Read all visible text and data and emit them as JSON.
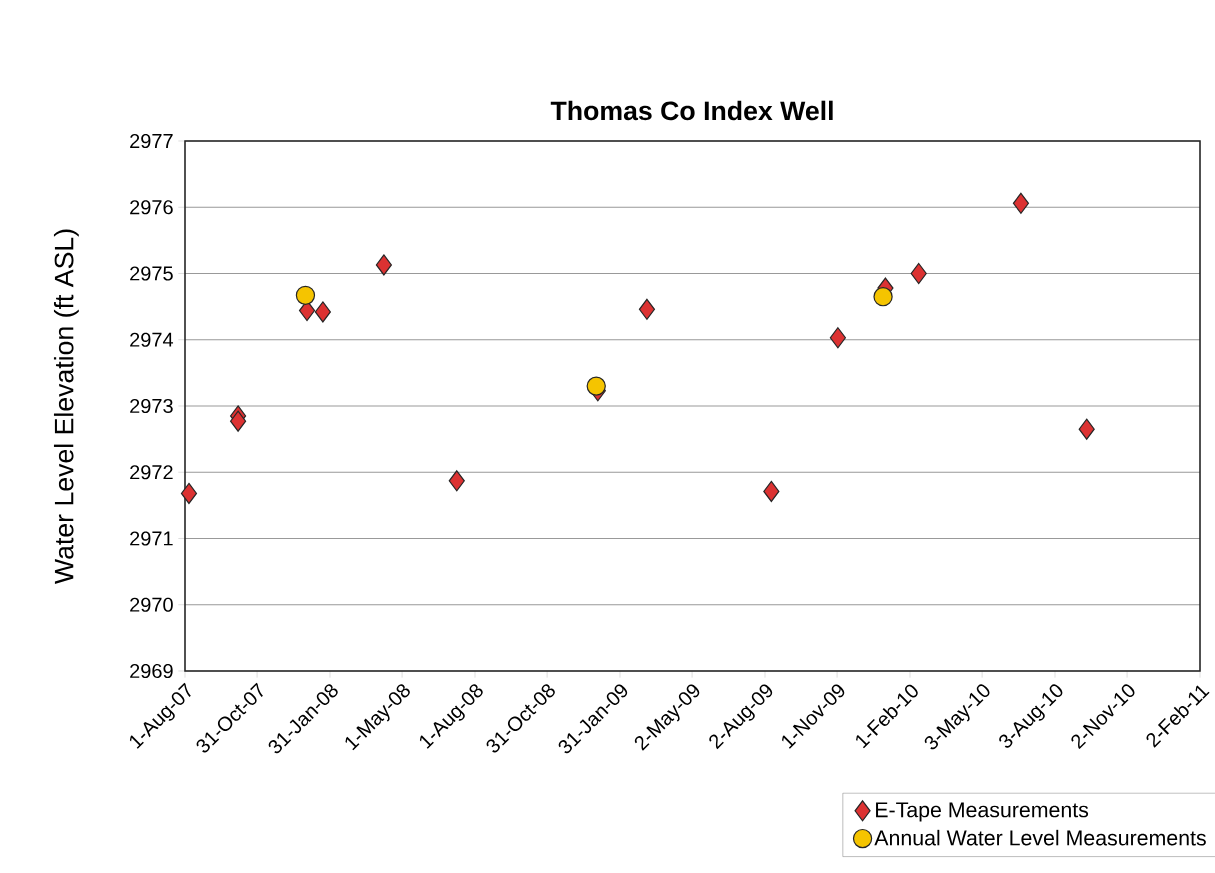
{
  "chart_data": {
    "type": "scatter",
    "title": "Thomas Co Index Well",
    "ylabel": "Water Level Elevation (ft ASL)",
    "xlim": [
      "2007-08-01",
      "2011-02-02"
    ],
    "xticks": [
      {
        "value": "2007-08-01",
        "label": "1-Aug-07"
      },
      {
        "value": "2007-10-31",
        "label": "31-Oct-07"
      },
      {
        "value": "2008-01-31",
        "label": "31-Jan-08"
      },
      {
        "value": "2008-05-01",
        "label": "1-May-08"
      },
      {
        "value": "2008-08-01",
        "label": "1-Aug-08"
      },
      {
        "value": "2008-10-31",
        "label": "31-Oct-08"
      },
      {
        "value": "2009-01-31",
        "label": "31-Jan-09"
      },
      {
        "value": "2009-05-02",
        "label": "2-May-09"
      },
      {
        "value": "2009-08-02",
        "label": "2-Aug-09"
      },
      {
        "value": "2009-11-01",
        "label": "1-Nov-09"
      },
      {
        "value": "2010-02-01",
        "label": "1-Feb-10"
      },
      {
        "value": "2010-05-03",
        "label": "3-May-10"
      },
      {
        "value": "2010-08-03",
        "label": "3-Aug-10"
      },
      {
        "value": "2010-11-02",
        "label": "2-Nov-10"
      },
      {
        "value": "2011-02-02",
        "label": "2-Feb-11"
      }
    ],
    "ylim": [
      2969,
      2977
    ],
    "yticks": [
      2969,
      2970,
      2971,
      2972,
      2973,
      2974,
      2975,
      2976,
      2977
    ],
    "grid": "y",
    "legend": "bottom",
    "series": [
      {
        "name": "E-Tape Measurements",
        "color": "#dc3232",
        "marker": "diamond",
        "x": [
          "2007-08-06",
          "2007-10-07",
          "2007-10-07",
          "2008-01-02",
          "2008-01-22",
          "2008-04-08",
          "2008-07-09",
          "2009-01-03",
          "2009-03-06",
          "2009-08-10",
          "2009-11-02",
          "2010-01-01",
          "2010-02-12",
          "2010-06-21",
          "2010-09-12"
        ],
        "values": [
          2971.68,
          2972.85,
          2972.77,
          2974.44,
          2974.42,
          2975.13,
          2971.87,
          2973.23,
          2974.46,
          2971.71,
          2974.03,
          2974.78,
          2975.0,
          2976.06,
          2972.65
        ]
      },
      {
        "name": "Annual Water Level Measurements",
        "color": "#f5c400",
        "marker": "circle",
        "x": [
          "2007-12-31",
          "2009-01-01",
          "2009-12-29"
        ],
        "values": [
          2974.67,
          2973.3,
          2974.65
        ]
      }
    ]
  }
}
